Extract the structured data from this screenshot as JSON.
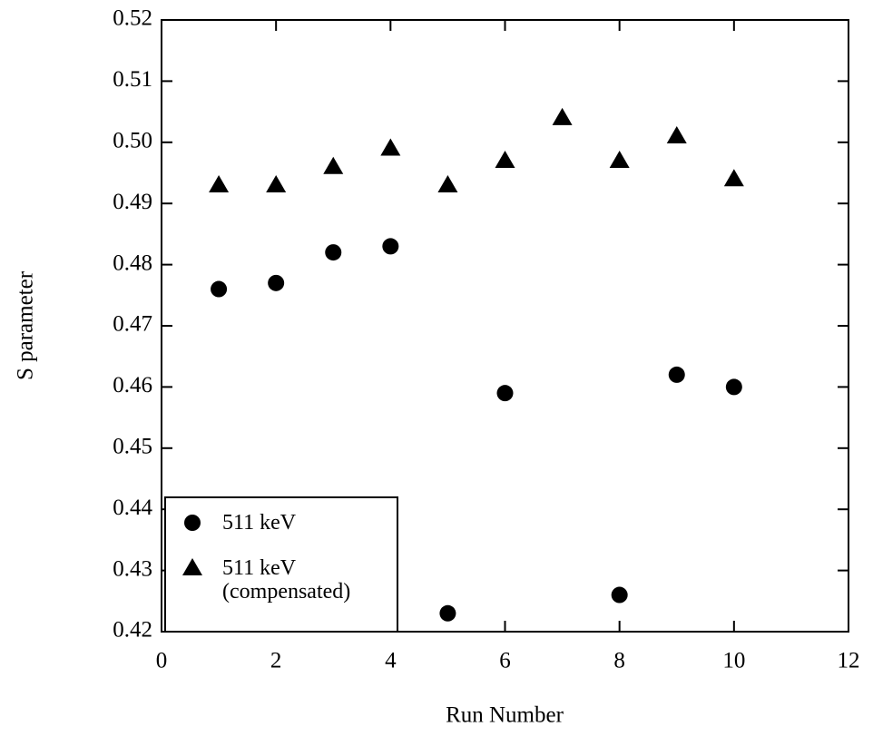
{
  "chart_data": {
    "type": "scatter",
    "xlabel": "Run Number",
    "ylabel": "S parameter",
    "xlim": [
      0,
      12
    ],
    "xticks": [
      0,
      2,
      4,
      6,
      8,
      10,
      12
    ],
    "ylim": [
      0.42,
      0.52
    ],
    "yticks": [
      0.42,
      0.43,
      0.44,
      0.45,
      0.46,
      0.47,
      0.48,
      0.49,
      {
        "value": 0.5,
        "label": "0.50"
      },
      0.51,
      0.52
    ],
    "legend": "lower left",
    "series": [
      {
        "name": "511 keV",
        "color": "#000000",
        "marker": "circle",
        "x": [
          1,
          2,
          3,
          4,
          5,
          6,
          8,
          9,
          10
        ],
        "values": [
          0.476,
          0.477,
          0.482,
          0.483,
          0.423,
          0.459,
          0.426,
          0.462,
          0.46
        ]
      },
      {
        "name": "511 keV (compensated)",
        "color": "#000000",
        "marker": "triangle",
        "x": [
          1,
          2,
          3,
          4,
          5,
          6,
          7,
          8,
          9,
          10
        ],
        "values": [
          0.493,
          0.493,
          0.496,
          0.499,
          0.493,
          0.497,
          0.504,
          0.497,
          0.501,
          0.494
        ]
      }
    ]
  }
}
